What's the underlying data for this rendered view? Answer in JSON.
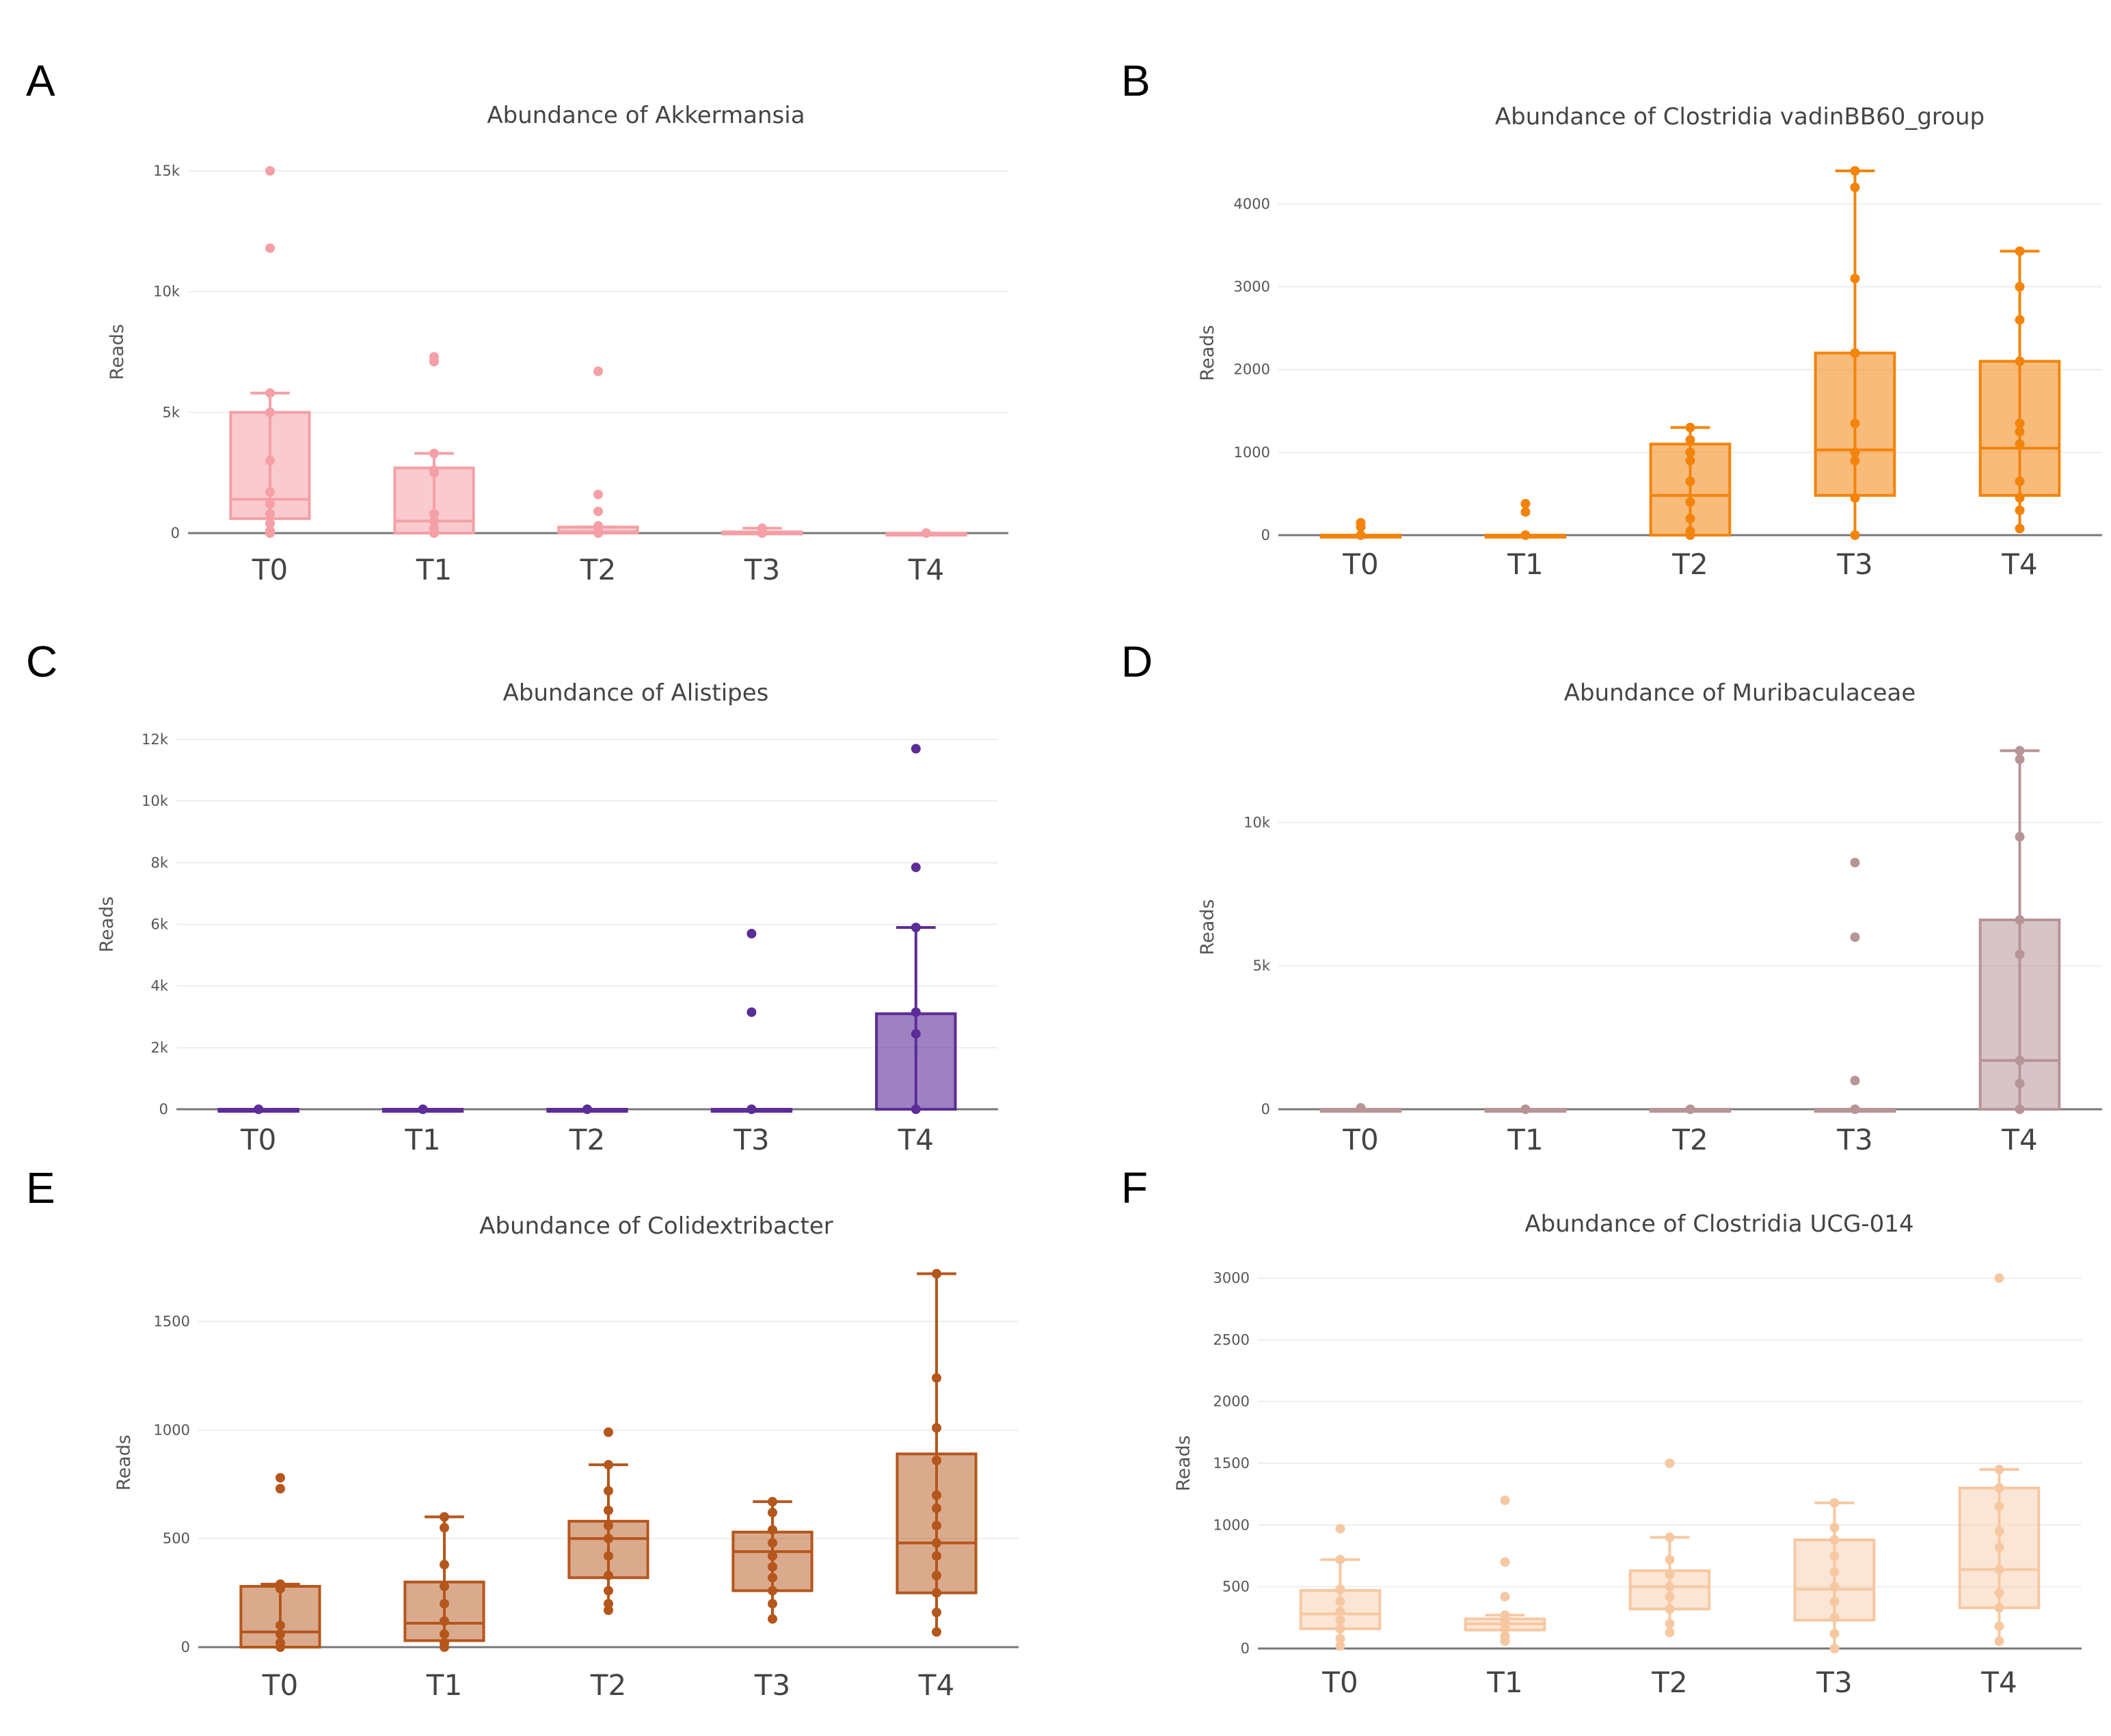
{
  "chart_data": [
    {
      "panel": "A",
      "type": "box",
      "title": "Abundance of Akkermansia",
      "xlabel": "",
      "ylabel": "Reads",
      "ylim": [
        0,
        15000
      ],
      "yticks": [
        0,
        5000,
        10000,
        15000
      ],
      "ytick_labels": [
        "0",
        "5k",
        "10k",
        "15k"
      ],
      "categories": [
        "T0",
        "T1",
        "T2",
        "T3",
        "T4"
      ],
      "color": "#f4a0a6",
      "fill_opacity": 0.55,
      "boxes": [
        {
          "q1": 600,
          "median": 1400,
          "q3": 5000,
          "lower": 0,
          "upper": 5800
        },
        {
          "q1": 0,
          "median": 500,
          "q3": 2700,
          "lower": 0,
          "upper": 3300
        },
        {
          "q1": 0,
          "median": 50,
          "q3": 250,
          "lower": 0,
          "upper": 250
        },
        {
          "q1": 0,
          "median": 0,
          "q3": 50,
          "lower": 0,
          "upper": 200
        },
        {
          "q1": 0,
          "median": 0,
          "q3": 0,
          "lower": 0,
          "upper": 0
        }
      ],
      "points": [
        [
          15000,
          11800,
          5800,
          5000,
          3000,
          1700,
          1200,
          800,
          400,
          100,
          0
        ],
        [
          7300,
          7100,
          3300,
          2600,
          2500,
          800,
          500,
          200,
          0
        ],
        [
          6700,
          1600,
          900,
          300,
          100,
          0
        ],
        [
          200,
          100,
          0
        ],
        [
          0
        ]
      ]
    },
    {
      "panel": "B",
      "type": "box",
      "title": "Abundance of Clostridia vadinBB60_group",
      "xlabel": "",
      "ylabel": "Reads",
      "ylim": [
        0,
        4400
      ],
      "yticks": [
        0,
        1000,
        2000,
        3000,
        4000
      ],
      "ytick_labels": [
        "0",
        "1000",
        "2000",
        "3000",
        "4000"
      ],
      "categories": [
        "T0",
        "T1",
        "T2",
        "T3",
        "T4"
      ],
      "color": "#f2840c",
      "fill_opacity": 0.55,
      "boxes": [
        {
          "q1": 0,
          "median": 0,
          "q3": 0,
          "lower": 0,
          "upper": 0
        },
        {
          "q1": 0,
          "median": 0,
          "q3": 0,
          "lower": 0,
          "upper": 0
        },
        {
          "q1": 0,
          "median": 480,
          "q3": 1100,
          "lower": 0,
          "upper": 1300
        },
        {
          "q1": 480,
          "median": 1030,
          "q3": 2200,
          "lower": 0,
          "upper": 4400
        },
        {
          "q1": 480,
          "median": 1050,
          "q3": 2100,
          "lower": 80,
          "upper": 3430
        }
      ],
      "points": [
        [
          150,
          100,
          0
        ],
        [
          380,
          280,
          0
        ],
        [
          1300,
          1150,
          1000,
          900,
          650,
          400,
          200,
          50,
          0
        ],
        [
          4400,
          4200,
          3100,
          2200,
          1350,
          1000,
          900,
          450,
          0
        ],
        [
          3430,
          3000,
          2600,
          2100,
          1350,
          1250,
          1100,
          650,
          450,
          300,
          80
        ]
      ]
    },
    {
      "panel": "C",
      "type": "box",
      "title": "Abundance of Alistipes",
      "xlabel": "",
      "ylabel": "Reads",
      "ylim": [
        0,
        12000
      ],
      "yticks": [
        0,
        2000,
        4000,
        6000,
        8000,
        10000,
        12000
      ],
      "ytick_labels": [
        "0",
        "2k",
        "4k",
        "6k",
        "8k",
        "10k",
        "12k"
      ],
      "categories": [
        "T0",
        "T1",
        "T2",
        "T3",
        "T4"
      ],
      "color": "#5b2d97",
      "fill_opacity": 0.6,
      "boxes": [
        {
          "q1": 0,
          "median": 0,
          "q3": 0,
          "lower": 0,
          "upper": 0
        },
        {
          "q1": 0,
          "median": 0,
          "q3": 0,
          "lower": 0,
          "upper": 0
        },
        {
          "q1": 0,
          "median": 0,
          "q3": 0,
          "lower": 0,
          "upper": 0
        },
        {
          "q1": 0,
          "median": 0,
          "q3": 0,
          "lower": 0,
          "upper": 0
        },
        {
          "q1": 0,
          "median": 0,
          "q3": 3100,
          "lower": 0,
          "upper": 5900
        }
      ],
      "points": [
        [
          0
        ],
        [
          0
        ],
        [
          0
        ],
        [
          5700,
          3150,
          0
        ],
        [
          11700,
          7850,
          5900,
          3150,
          2450,
          0
        ]
      ]
    },
    {
      "panel": "D",
      "type": "box",
      "title": "Abundance of Muribaculaceae",
      "xlabel": "",
      "ylabel": "Reads",
      "ylim": [
        0,
        12700
      ],
      "yticks": [
        0,
        5000,
        10000
      ],
      "ytick_labels": [
        "0",
        "5k",
        "10k"
      ],
      "categories": [
        "T0",
        "T1",
        "T2",
        "T3",
        "T4"
      ],
      "color": "#b79497",
      "fill_opacity": 0.55,
      "boxes": [
        {
          "q1": 0,
          "median": 0,
          "q3": 0,
          "lower": 0,
          "upper": 0
        },
        {
          "q1": 0,
          "median": 0,
          "q3": 0,
          "lower": 0,
          "upper": 0
        },
        {
          "q1": 0,
          "median": 0,
          "q3": 0,
          "lower": 0,
          "upper": 0
        },
        {
          "q1": 0,
          "median": 0,
          "q3": 0,
          "lower": 0,
          "upper": 0
        },
        {
          "q1": 0,
          "median": 1700,
          "q3": 6600,
          "lower": 0,
          "upper": 12500
        }
      ],
      "points": [
        [
          50
        ],
        [
          0
        ],
        [
          0
        ],
        [
          8600,
          6000,
          1000,
          0
        ],
        [
          12500,
          12200,
          9500,
          6600,
          5400,
          1700,
          900,
          0
        ]
      ]
    },
    {
      "panel": "E",
      "type": "box",
      "title": "Abundance of Colidextribacter",
      "xlabel": "",
      "ylabel": "Reads",
      "ylim": [
        0,
        1700
      ],
      "yticks": [
        0,
        500,
        1000,
        1500
      ],
      "ytick_labels": [
        "0",
        "500",
        "1000",
        "1500"
      ],
      "categories": [
        "T0",
        "T1",
        "T2",
        "T3",
        "T4"
      ],
      "color": "#b5561c",
      "fill_opacity": 0.5,
      "boxes": [
        {
          "q1": 0,
          "median": 70,
          "q3": 280,
          "lower": 0,
          "upper": 290
        },
        {
          "q1": 30,
          "median": 110,
          "q3": 300,
          "lower": 0,
          "upper": 600
        },
        {
          "q1": 320,
          "median": 500,
          "q3": 580,
          "lower": 170,
          "upper": 840
        },
        {
          "q1": 260,
          "median": 440,
          "q3": 530,
          "lower": 130,
          "upper": 670
        },
        {
          "q1": 250,
          "median": 480,
          "q3": 890,
          "lower": 70,
          "upper": 1720
        }
      ],
      "points": [
        [
          780,
          730,
          290,
          270,
          100,
          60,
          20,
          0
        ],
        [
          600,
          550,
          380,
          280,
          200,
          120,
          60,
          20,
          0
        ],
        [
          990,
          840,
          720,
          630,
          560,
          500,
          420,
          330,
          260,
          200,
          170
        ],
        [
          670,
          620,
          540,
          480,
          420,
          370,
          320,
          260,
          200,
          130
        ],
        [
          1720,
          1240,
          1010,
          860,
          700,
          640,
          560,
          480,
          420,
          330,
          250,
          160,
          70
        ]
      ]
    },
    {
      "panel": "F",
      "type": "box",
      "title": "Abundance of Clostridia UCG-014",
      "xlabel": "",
      "ylabel": "Reads",
      "ylim": [
        0,
        3000
      ],
      "yticks": [
        0,
        500,
        1000,
        1500,
        2000,
        2500,
        3000
      ],
      "ytick_labels": [
        "0",
        "500",
        "1000",
        "1500",
        "2000",
        "2500",
        "3000"
      ],
      "categories": [
        "T0",
        "T1",
        "T2",
        "T3",
        "T4"
      ],
      "color": "#f6c8a2",
      "fill_opacity": 0.45,
      "boxes": [
        {
          "q1": 160,
          "median": 280,
          "q3": 470,
          "lower": 0,
          "upper": 720
        },
        {
          "q1": 150,
          "median": 200,
          "q3": 240,
          "lower": 60,
          "upper": 270
        },
        {
          "q1": 320,
          "median": 500,
          "q3": 630,
          "lower": 130,
          "upper": 900
        },
        {
          "q1": 230,
          "median": 480,
          "q3": 880,
          "lower": 0,
          "upper": 1180
        },
        {
          "q1": 330,
          "median": 640,
          "q3": 1300,
          "lower": 60,
          "upper": 1450
        }
      ],
      "points": [
        [
          970,
          720,
          480,
          380,
          300,
          230,
          160,
          80,
          20
        ],
        [
          1200,
          700,
          420,
          270,
          230,
          200,
          160,
          100,
          60
        ],
        [
          1500,
          900,
          720,
          600,
          500,
          420,
          320,
          200,
          130
        ],
        [
          1180,
          980,
          880,
          750,
          620,
          500,
          380,
          250,
          120,
          0
        ],
        [
          3000,
          1450,
          1300,
          1150,
          950,
          820,
          640,
          450,
          330,
          180,
          60
        ]
      ]
    }
  ]
}
